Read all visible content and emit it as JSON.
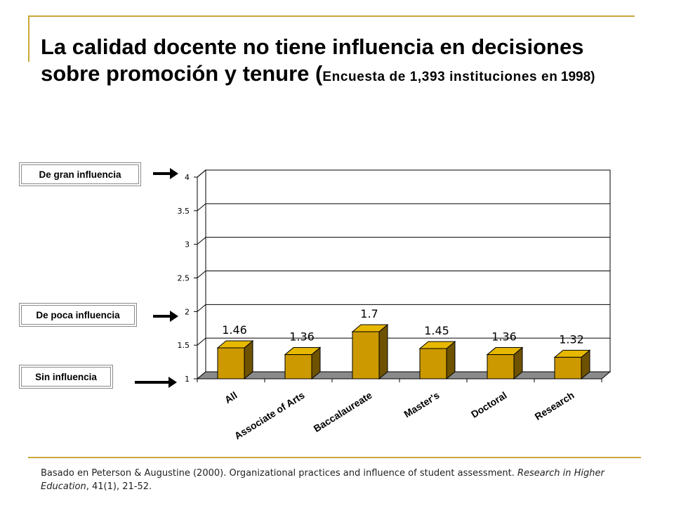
{
  "title": {
    "main": "La calidad docente no tiene influencia en decisiones sobre promoción y tenure (",
    "subtitle": "Encuesta de 1,393 instituciones en",
    "year": "1998",
    "close": ")"
  },
  "levels": {
    "gran": "De gran influencia",
    "poca": "De poca influencia",
    "sin": "Sin influencia"
  },
  "footnote": {
    "prefix": "Basado en Peterson & Augustine (2000). Organizational practices and influence of student assessment. ",
    "journal": "Research in Higher Education",
    "suffix": ", 41(1), 21-52."
  },
  "colors": {
    "bar_front": "#cc9900",
    "bar_top": "#e6b800",
    "bar_side": "#6e5200",
    "floor": "#8a8a8a"
  },
  "chart_data": {
    "type": "bar",
    "categories": [
      "All",
      "Associate of Arts",
      "Baccalaureate",
      "Master's",
      "Doctoral",
      "Research"
    ],
    "values": [
      1.46,
      1.36,
      1.7,
      1.45,
      1.36,
      1.32
    ],
    "value_labels": [
      "1.46",
      "1.36",
      "1.7",
      "1.45",
      "1.36",
      "1.32"
    ],
    "ylim": [
      1,
      4
    ],
    "yticks": [
      "1",
      "1.5",
      "2",
      "2.5",
      "3",
      "3.5",
      "4"
    ],
    "grid": true,
    "legend": "none"
  }
}
